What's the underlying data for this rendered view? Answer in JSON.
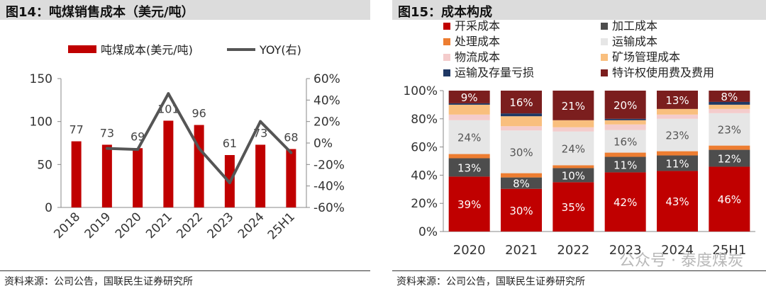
{
  "charts": [
    {
      "id": "fig14",
      "title": "图14：吨煤销售成本（美元/吨）",
      "source": "资料来源：公司公告，国联民生证券研究所",
      "colors": {
        "bar": "#c00000",
        "line": "#555555"
      }
    },
    {
      "id": "fig15",
      "title": "图15：成本构成",
      "source": "资料来源：公司公告，国联民生证券研究所",
      "watermark": "公众号 · 泰度煤炭"
    }
  ],
  "chart_data": [
    {
      "type": "bar+line",
      "title": "图14：吨煤销售成本（美元/吨）",
      "categories": [
        "2018",
        "2019",
        "2020",
        "2021",
        "2022",
        "2023",
        "2024",
        "25H1"
      ],
      "series": [
        {
          "name": "吨煤成本(美元/吨)",
          "kind": "bar",
          "axis": "left",
          "values": [
            77,
            73,
            69,
            101,
            96,
            61,
            73,
            68
          ],
          "labels": [
            "77",
            "73",
            "69",
            "101",
            "96",
            "61",
            "73",
            "68"
          ]
        },
        {
          "name": "YOY(右)",
          "kind": "line",
          "axis": "right",
          "values": [
            null,
            -0.05,
            -0.06,
            0.46,
            -0.05,
            -0.37,
            0.2,
            -0.09
          ]
        }
      ],
      "left_axis": {
        "min": 0,
        "max": 150,
        "ticks": [
          0,
          50,
          100,
          150
        ],
        "tick_labels": [
          "0",
          "50",
          "100",
          "150"
        ]
      },
      "right_axis": {
        "min": -0.6,
        "max": 0.6,
        "ticks": [
          -0.6,
          -0.4,
          -0.2,
          0,
          0.2,
          0.4,
          0.6
        ],
        "tick_labels": [
          "-60%",
          "-40%",
          "-20%",
          "0%",
          "20%",
          "40%",
          "60%"
        ]
      },
      "legend": [
        "吨煤成本(美元/吨)",
        "YOY(右)"
      ]
    },
    {
      "type": "stacked-bar-100",
      "title": "图15：成本构成",
      "categories": [
        "2020",
        "2021",
        "2022",
        "2023",
        "2024",
        "25H1"
      ],
      "series": [
        {
          "name": "开采成本",
          "color": "#c00000",
          "values": [
            0.39,
            0.3,
            0.35,
            0.42,
            0.43,
            0.46
          ],
          "labels": [
            "39%",
            "30%",
            "35%",
            "42%",
            "43%",
            "46%"
          ]
        },
        {
          "name": "加工成本",
          "color": "#4d4d4d",
          "values": [
            0.13,
            0.08,
            0.1,
            0.11,
            0.11,
            0.12
          ],
          "labels": [
            "13%",
            "8%",
            "10%",
            "11%",
            "11%",
            "12%"
          ]
        },
        {
          "name": "处理成本",
          "color": "#ed7d31",
          "values": [
            0.03,
            0.03,
            0.02,
            0.03,
            0.03,
            0.03
          ],
          "labels": [
            "",
            "",
            "",
            "",
            "",
            ""
          ]
        },
        {
          "name": "运输成本",
          "color": "#e6e6e6",
          "values": [
            0.24,
            0.3,
            0.24,
            0.16,
            0.23,
            0.23
          ],
          "labels": [
            "24%",
            "30%",
            "24%",
            "16%",
            "23%",
            "23%"
          ]
        },
        {
          "name": "物流成本",
          "color": "#f4cccc",
          "values": [
            0.04,
            0.03,
            0.03,
            0.04,
            0.03,
            0.03
          ],
          "labels": [
            "",
            "",
            "",
            "",
            "",
            ""
          ]
        },
        {
          "name": "矿场管理成本",
          "color": "#f9bf7e",
          "values": [
            0.07,
            0.07,
            0.05,
            0.03,
            0.04,
            0.03
          ],
          "labels": [
            "",
            "",
            "",
            "",
            "",
            ""
          ]
        },
        {
          "name": "运输及存量亏损",
          "color": "#1f3864",
          "values": [
            0.01,
            0.02,
            0.0,
            0.01,
            0.0,
            0.02
          ],
          "labels": [
            "",
            "",
            "",
            "",
            "",
            ""
          ]
        },
        {
          "name": "特许权使用费及费用",
          "color": "#7b1e1e",
          "values": [
            0.09,
            0.16,
            0.21,
            0.2,
            0.13,
            0.08
          ],
          "labels": [
            "9%",
            "16%",
            "21%",
            "20%",
            "13%",
            "8%"
          ]
        }
      ],
      "y_axis": {
        "min": 0,
        "max": 1,
        "ticks": [
          0,
          0.2,
          0.4,
          0.6,
          0.8,
          1.0
        ],
        "tick_labels": [
          "0%",
          "20%",
          "40%",
          "60%",
          "80%",
          "100%"
        ]
      }
    }
  ]
}
